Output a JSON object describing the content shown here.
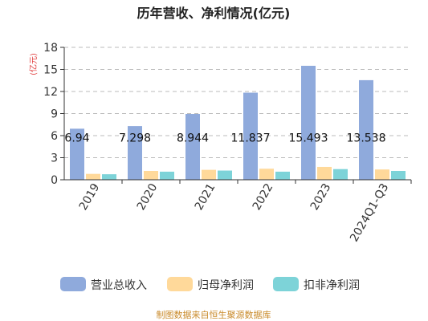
{
  "chart_data": {
    "type": "bar",
    "title": "历年营收、净利情况(亿元)",
    "ylabel": "(亿元)",
    "xlabel": "",
    "ylim": [
      0,
      18
    ],
    "yticks": [
      0,
      3,
      6,
      9,
      12,
      15,
      18
    ],
    "grid": true,
    "legend_position": "bottom",
    "categories": [
      "2019",
      "2020",
      "2021",
      "2022",
      "2023",
      "2024Q1-Q3"
    ],
    "series": [
      {
        "name": "营业总收入",
        "color": "#8faadc",
        "values": [
          6.94,
          7.298,
          8.944,
          11.837,
          15.493,
          13.538
        ],
        "labels": [
          "6.94",
          "7.298",
          "8.944",
          "11.837",
          "15.493",
          "13.538"
        ]
      },
      {
        "name": "归母净利润",
        "color": "#ffd99a",
        "values": [
          0.8,
          1.2,
          1.35,
          1.5,
          1.75,
          1.4
        ]
      },
      {
        "name": "扣非净利润",
        "color": "#7dd3d8",
        "values": [
          0.75,
          1.1,
          1.25,
          1.1,
          1.45,
          1.2
        ]
      }
    ],
    "source": "制图数据来自恒生聚源数据库"
  },
  "colors": {
    "axis": "#333333",
    "grid": "#bbbbbb",
    "ylabel": "#e03a3a",
    "source": "#c98a2a"
  }
}
